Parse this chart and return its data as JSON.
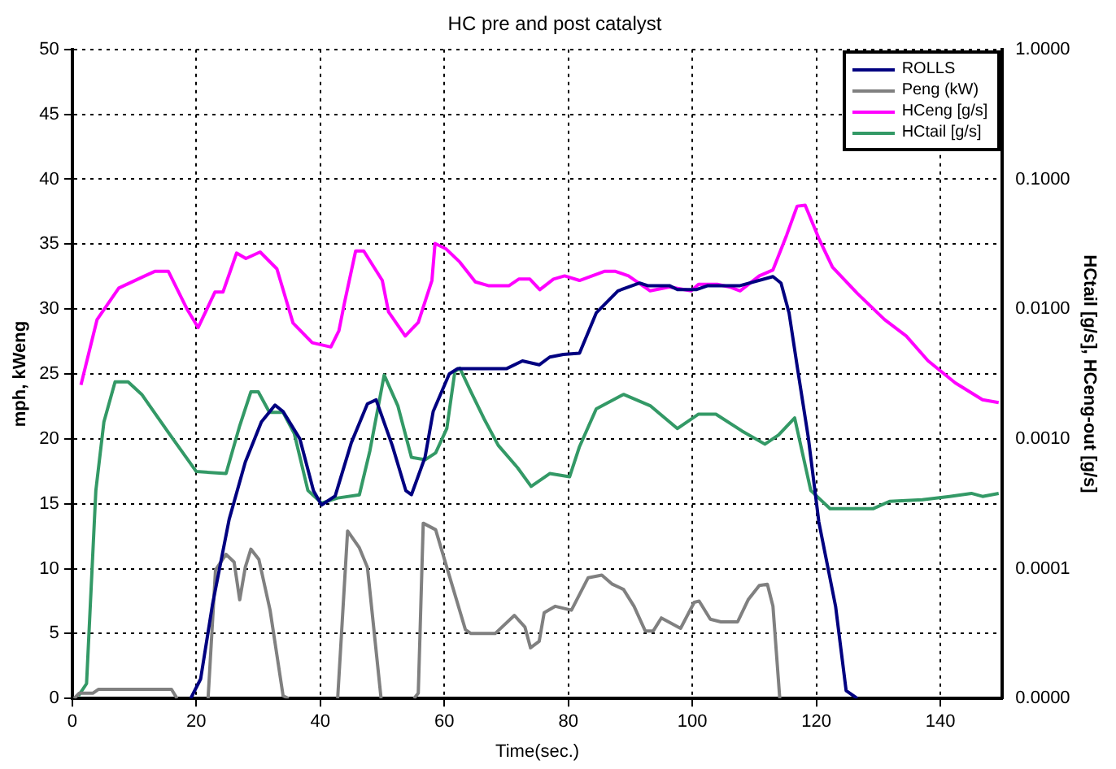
{
  "chart_data": {
    "type": "line",
    "title": "HC pre and post catalyst",
    "xlabel": "Time(sec.)",
    "ylabel": "mph, kWeng",
    "y2label": "HCtail [g/s], HCeng-out [g/s]",
    "xlim": [
      0,
      150
    ],
    "xticks": [
      0,
      20,
      40,
      60,
      80,
      100,
      120,
      140
    ],
    "ylim": [
      0,
      50
    ],
    "yticks": [
      0,
      5,
      10,
      15,
      20,
      25,
      30,
      35,
      40,
      45,
      50
    ],
    "y2lim": [
      1e-05,
      1
    ],
    "y2ticks": [
      {
        "value": 1e-05,
        "label": "0.0000"
      },
      {
        "value": 0.0001,
        "label": "0.0001"
      },
      {
        "value": 0.001,
        "label": "0.0010"
      },
      {
        "value": 0.01,
        "label": "0.0100"
      },
      {
        "value": 0.1,
        "label": "0.1000"
      },
      {
        "value": 1,
        "label": "1.0000"
      }
    ],
    "log": "y2",
    "grid": true,
    "legend": "top right",
    "marker": "none",
    "line_style": "solid",
    "series": [
      {
        "name": "ROLLS",
        "color": "#000080",
        "x": [
          19.1,
          20.7,
          22.6,
          25.3,
          27.9,
          30.5,
          32.7,
          34,
          36.7,
          38.9,
          40.2,
          42.4,
          45,
          47.6,
          49,
          51.6,
          53.8,
          54.7,
          56.9,
          58.2,
          60.8,
          62.1,
          70,
          72.6,
          75.3,
          77,
          79.2,
          81.8,
          84.5,
          88,
          91.5,
          92.8,
          96.3,
          97.6,
          100.7,
          102.5,
          107.7,
          113,
          114.3,
          115.6,
          117,
          118.7,
          120.4,
          123.1,
          124.8,
          126.6
        ],
        "values": [
          0,
          1.5,
          7.2,
          13.8,
          18.2,
          21.3,
          22.6,
          22.1,
          20,
          16,
          14.9,
          15.6,
          19.7,
          22.7,
          23,
          19.5,
          16,
          15.7,
          18.6,
          22.1,
          25,
          25.4,
          25.4,
          26,
          25.7,
          26.3,
          26.5,
          26.6,
          29.7,
          31.4,
          32,
          31.8,
          31.8,
          31.5,
          31.5,
          31.8,
          31.8,
          32.5,
          32,
          29.7,
          25.3,
          20.1,
          13.6,
          7.1,
          0.6,
          0
        ]
      },
      {
        "name": "Peng (kW)",
        "color": "#808080",
        "x": [
          0.3,
          1.1,
          3.3,
          4.2,
          16,
          16.9,
          19,
          21.9,
          23.1,
          24.8,
          26.1,
          27,
          27.9,
          28.8,
          30.1,
          31.9,
          34,
          34.9,
          38,
          42.8,
          44.4,
          46.3,
          47.6,
          49.8,
          52,
          55.1,
          55.8,
          56.6,
          58.6,
          60.4,
          63.4,
          64.3,
          68.2,
          71.3,
          73,
          73.9,
          75.3,
          76.1,
          77.9,
          80.5,
          83.2,
          85.4,
          87.1,
          88.9,
          90.6,
          92.4,
          93.7,
          95,
          98.1,
          100.3,
          101.1,
          102.9,
          104.6,
          107.3,
          109,
          110.8,
          112.1,
          113,
          114.1
        ],
        "values": [
          0,
          0.4,
          0.4,
          0.7,
          0.7,
          0,
          null,
          0,
          9.9,
          11.1,
          10.5,
          7.6,
          10.1,
          11.5,
          10.7,
          6.8,
          0.2,
          0,
          null,
          0,
          12.9,
          11.6,
          10.1,
          0,
          null,
          0,
          0.4,
          13.5,
          13,
          10.1,
          5.3,
          5,
          5,
          6.4,
          5.5,
          3.9,
          4.4,
          6.6,
          7.1,
          6.8,
          9.3,
          9.5,
          8.8,
          8.4,
          7.1,
          5.2,
          5.2,
          6.2,
          5.4,
          7.4,
          7.5,
          6.1,
          5.9,
          5.9,
          7.6,
          8.7,
          8.8,
          7.1,
          0
        ]
      },
      {
        "name": "HCeng [g/s]",
        "color": "#ff00ff",
        "axis": "y2",
        "x": [
          1.4,
          4,
          7.5,
          11.5,
          13.3,
          15.5,
          18.5,
          20.3,
          23,
          24.3,
          26.5,
          28,
          30.3,
          33,
          35.6,
          38.7,
          41.7,
          43,
          43.9,
          45.7,
          47,
          50,
          51,
          53.7,
          55.8,
          58,
          58.5,
          60.3,
          62.5,
          65,
          67.2,
          70.4,
          72,
          73.8,
          75.4,
          77.6,
          79.4,
          81.8,
          85.8,
          87.6,
          89.7,
          93.2,
          96.3,
          99.8,
          101,
          104,
          106,
          107.7,
          110.8,
          113,
          115.2,
          116.9,
          118.2,
          120.4,
          122.6,
          126.6,
          131,
          134.5,
          138,
          142.4,
          146.8,
          149.4
        ],
        "values": [
          0.0026,
          0.0083,
          0.0145,
          0.0178,
          0.0195,
          0.0195,
          0.01,
          0.0072,
          0.0135,
          0.0135,
          0.027,
          0.0245,
          0.0275,
          0.0204,
          0.0078,
          0.0055,
          0.0051,
          0.0068,
          0.0112,
          0.028,
          0.028,
          0.0166,
          0.0095,
          0.0062,
          0.0079,
          0.0166,
          0.032,
          0.029,
          0.023,
          0.0162,
          0.0151,
          0.0151,
          0.017,
          0.017,
          0.0141,
          0.017,
          0.018,
          0.0166,
          0.0195,
          0.0195,
          0.018,
          0.0138,
          0.0148,
          0.0138,
          0.0155,
          0.0155,
          0.0148,
          0.0138,
          0.018,
          0.02,
          0.037,
          0.062,
          0.063,
          0.035,
          0.021,
          0.0132,
          0.0083,
          0.0062,
          0.004,
          0.0027,
          0.002,
          0.0019
        ]
      },
      {
        "name": "HCtail [g/s]",
        "color": "#339966",
        "axis": "y2",
        "x": [
          1,
          2.3,
          3.8,
          5.1,
          6.9,
          9,
          11.2,
          15.6,
          20,
          24.8,
          27,
          28.8,
          30,
          31.8,
          34,
          35.8,
          38,
          40.2,
          42.8,
          46.3,
          48,
          50.3,
          52.5,
          54.7,
          56.9,
          58.6,
          60.4,
          61.7,
          62.5,
          64.3,
          66.5,
          68.7,
          71.8,
          74,
          77,
          80.2,
          81.8,
          84.5,
          88.9,
          93.2,
          97.6,
          101,
          103.8,
          108,
          111.7,
          113.9,
          116.5,
          119.1,
          122.2,
          124.8,
          129.2,
          131.8,
          137.1,
          141.5,
          145,
          146.8,
          149.4
        ],
        "values": [
          1.05e-05,
          1.3e-05,
          0.0004,
          0.00135,
          0.00275,
          0.00275,
          0.0022,
          0.0011,
          0.00056,
          0.00054,
          0.00126,
          0.0023,
          0.0023,
          0.0016,
          0.0016,
          0.0011,
          0.0004,
          0.00032,
          0.00035,
          0.00037,
          0.00081,
          0.0031,
          0.0018,
          0.00072,
          0.00069,
          0.00078,
          0.0012,
          0.0033,
          0.0035,
          0.0023,
          0.0014,
          0.00089,
          0.0006,
          0.00043,
          0.00054,
          0.00051,
          0.00087,
          0.0017,
          0.0022,
          0.0018,
          0.0012,
          0.00155,
          0.00155,
          0.00115,
          0.00091,
          0.00107,
          0.00145,
          0.0004,
          0.00029,
          0.00029,
          0.00029,
          0.00033,
          0.00034,
          0.00036,
          0.00038,
          0.00036,
          0.00038
        ]
      }
    ]
  }
}
